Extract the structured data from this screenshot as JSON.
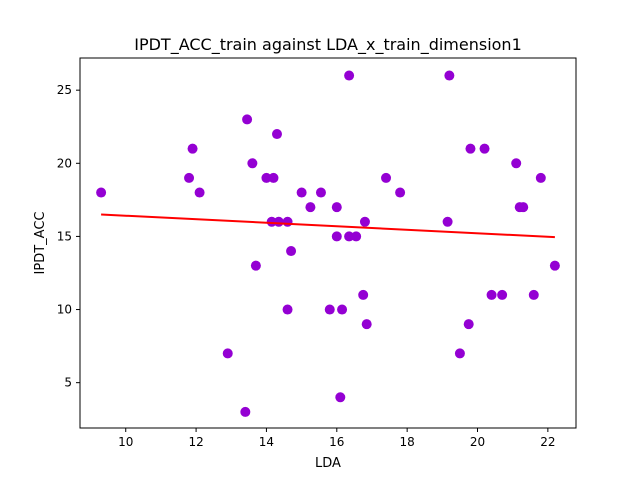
{
  "chart_data": {
    "type": "scatter",
    "title": "IPDT_ACC_train against LDA_x_train_dimension1",
    "xlabel": "LDA",
    "ylabel": "IPDT_ACC",
    "xlim": [
      8.7,
      22.8
    ],
    "ylim": [
      1.9,
      27.2
    ],
    "xticks": [
      10,
      12,
      14,
      16,
      18,
      20,
      22
    ],
    "yticks": [
      5,
      10,
      15,
      20,
      25
    ],
    "grid": false,
    "colors": {
      "points": "#9400d3",
      "fit_line": "#ff0000"
    },
    "series": [
      {
        "type": "scatter",
        "points": [
          [
            9.3,
            18
          ],
          [
            11.8,
            19
          ],
          [
            11.9,
            21
          ],
          [
            12.1,
            18
          ],
          [
            12.9,
            7
          ],
          [
            13.4,
            3
          ],
          [
            13.45,
            23
          ],
          [
            13.6,
            20
          ],
          [
            13.7,
            13
          ],
          [
            14.0,
            19
          ],
          [
            14.15,
            16
          ],
          [
            14.2,
            19
          ],
          [
            14.3,
            22
          ],
          [
            14.35,
            16
          ],
          [
            14.6,
            16
          ],
          [
            14.6,
            10
          ],
          [
            14.7,
            14
          ],
          [
            15.0,
            18
          ],
          [
            15.25,
            17
          ],
          [
            15.55,
            18
          ],
          [
            15.8,
            10
          ],
          [
            16.0,
            15
          ],
          [
            16.0,
            17
          ],
          [
            16.1,
            4
          ],
          [
            16.15,
            10
          ],
          [
            16.35,
            26
          ],
          [
            16.35,
            15
          ],
          [
            16.55,
            15
          ],
          [
            16.75,
            11
          ],
          [
            16.8,
            16
          ],
          [
            16.85,
            9
          ],
          [
            17.4,
            19
          ],
          [
            17.8,
            18
          ],
          [
            19.15,
            16
          ],
          [
            19.2,
            26
          ],
          [
            19.5,
            7
          ],
          [
            19.75,
            9
          ],
          [
            19.8,
            21
          ],
          [
            20.2,
            21
          ],
          [
            20.4,
            11
          ],
          [
            20.7,
            11
          ],
          [
            21.1,
            20
          ],
          [
            21.2,
            17
          ],
          [
            21.3,
            17
          ],
          [
            21.6,
            11
          ],
          [
            21.8,
            19
          ],
          [
            22.2,
            13
          ]
        ]
      },
      {
        "type": "line",
        "x": [
          9.3,
          22.2
        ],
        "y": [
          16.5,
          14.95
        ]
      }
    ]
  }
}
